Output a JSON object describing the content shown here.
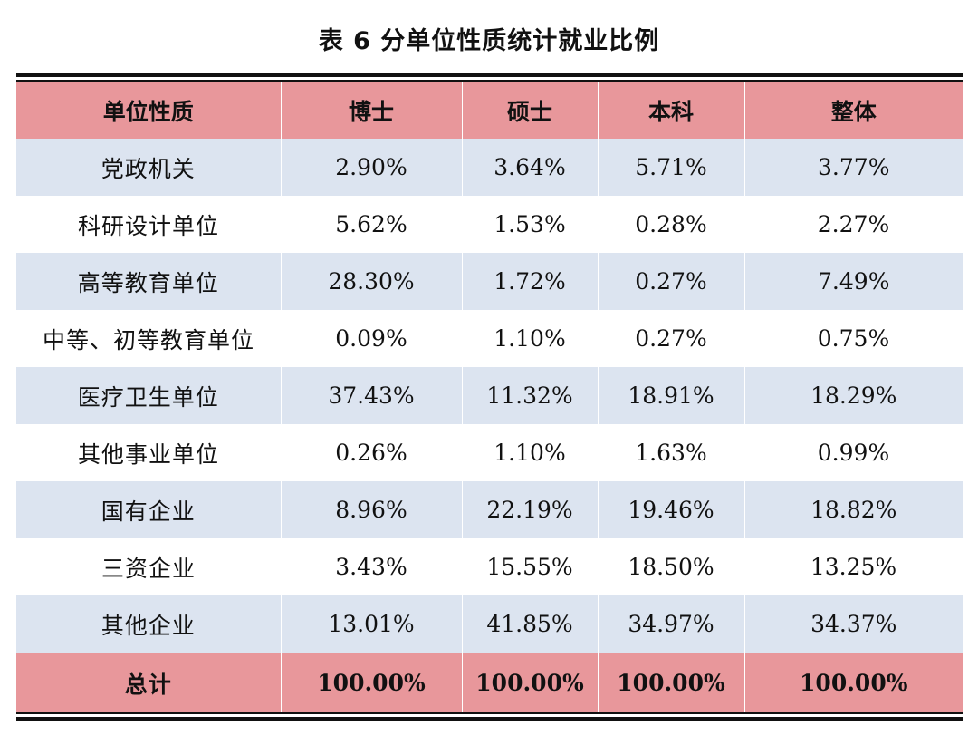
{
  "table": {
    "caption": "表 6  分单位性质统计就业比例",
    "columns": [
      "单位性质",
      "博士",
      "硕士",
      "本科",
      "整体"
    ],
    "rows": [
      {
        "category": "党政机关",
        "doctor": "2.90%",
        "master": "3.64%",
        "bachelor": "5.71%",
        "overall": "3.77%"
      },
      {
        "category": "科研设计单位",
        "doctor": "5.62%",
        "master": "1.53%",
        "bachelor": "0.28%",
        "overall": "2.27%"
      },
      {
        "category": "高等教育单位",
        "doctor": "28.30%",
        "master": "1.72%",
        "bachelor": "0.27%",
        "overall": "7.49%"
      },
      {
        "category": "中等、初等教育单位",
        "doctor": "0.09%",
        "master": "1.10%",
        "bachelor": "0.27%",
        "overall": "0.75%"
      },
      {
        "category": "医疗卫生单位",
        "doctor": "37.43%",
        "master": "11.32%",
        "bachelor": "18.91%",
        "overall": "18.29%"
      },
      {
        "category": "其他事业单位",
        "doctor": "0.26%",
        "master": "1.10%",
        "bachelor": "1.63%",
        "overall": "0.99%"
      },
      {
        "category": "国有企业",
        "doctor": "8.96%",
        "master": "22.19%",
        "bachelor": "19.46%",
        "overall": "18.82%"
      },
      {
        "category": "三资企业",
        "doctor": "3.43%",
        "master": "15.55%",
        "bachelor": "18.50%",
        "overall": "13.25%"
      },
      {
        "category": "其他企业",
        "doctor": "13.01%",
        "master": "41.85%",
        "bachelor": "34.97%",
        "overall": "34.37%"
      }
    ],
    "total": {
      "category": "总计",
      "doctor": "100.00%",
      "master": "100.00%",
      "bachelor": "100.00%",
      "overall": "100.00%"
    }
  },
  "colors": {
    "header_bg": "#e8979b",
    "shaded_row_bg": "#dce4f0",
    "rule": "#111111"
  }
}
